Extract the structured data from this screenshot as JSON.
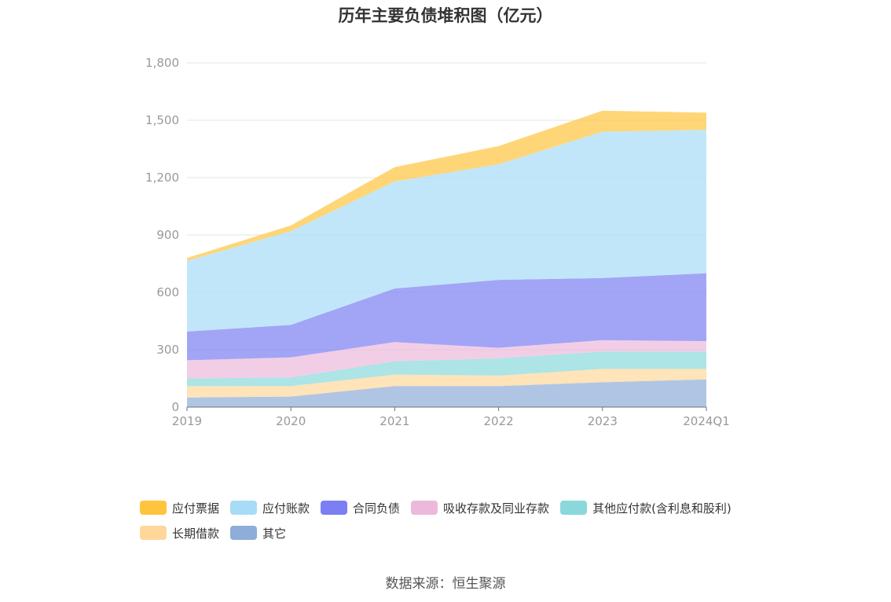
{
  "chart_data": {
    "type": "area",
    "stacked": true,
    "title": "历年主要负债堆积图（亿元）",
    "categories": [
      "2019",
      "2020",
      "2021",
      "2022",
      "2023",
      "2024Q1"
    ],
    "ylim": [
      0,
      1800
    ],
    "yticks": [
      "0",
      "300",
      "600",
      "900",
      "1,200",
      "1,500",
      "1,800"
    ],
    "ytick_values": [
      0,
      300,
      600,
      900,
      1200,
      1500,
      1800
    ],
    "grid": true,
    "series": [
      {
        "name": "其它",
        "color": "#8eadd9",
        "values": [
          50,
          55,
          110,
          110,
          130,
          145
        ]
      },
      {
        "name": "长期借款",
        "color": "#ffd79b",
        "values": [
          60,
          55,
          60,
          55,
          70,
          55
        ]
      },
      {
        "name": "其他应付款(含利息和股利)",
        "color": "#8ad8dc",
        "values": [
          40,
          45,
          70,
          90,
          90,
          90
        ]
      },
      {
        "name": "吸收存款及同业存款",
        "color": "#ecb9dc",
        "values": [
          95,
          105,
          100,
          55,
          60,
          55
        ]
      },
      {
        "name": "合同负债",
        "color": "#7b7ff2",
        "values": [
          150,
          170,
          280,
          355,
          325,
          355
        ]
      },
      {
        "name": "应付账款",
        "color": "#a8dcf6",
        "values": [
          370,
          490,
          560,
          605,
          765,
          750
        ]
      },
      {
        "name": "应付票据",
        "color": "#ffc43d",
        "values": [
          15,
          30,
          75,
          95,
          110,
          90
        ]
      }
    ],
    "legend_order": [
      "应付票据",
      "应付账款",
      "合同负债",
      "吸收存款及同业存款",
      "其他应付款(含利息和股利)",
      "长期借款",
      "其它"
    ],
    "legend_position": "bottom"
  },
  "source": "数据来源：恒生聚源"
}
